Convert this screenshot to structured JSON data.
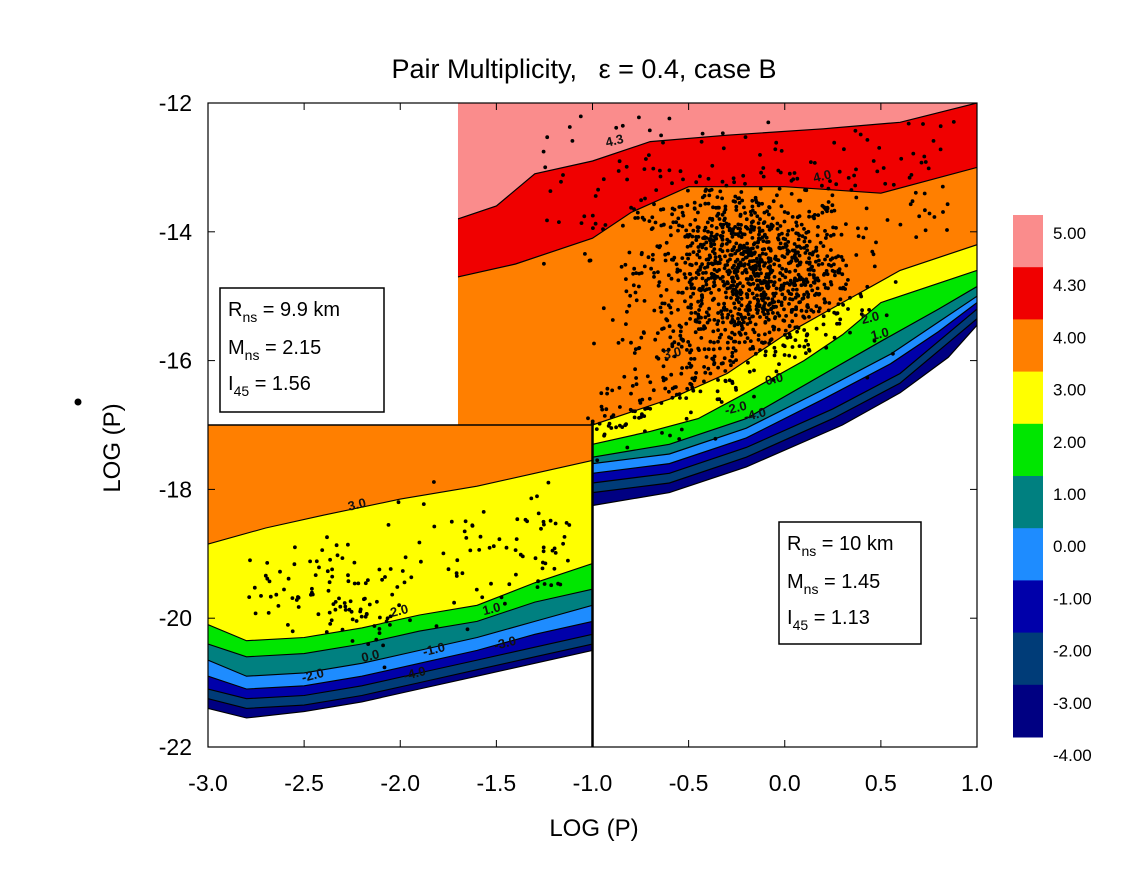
{
  "chart_data": {
    "type": "contour-scatter",
    "title_prefix": "Pair Multiplicity,",
    "title_epsilon": "ε = 0.4, case B",
    "xlabel": "LOG (P)",
    "ylabel": "LOG (P)",
    "ylabel_has_dot": true,
    "xlim": [
      -3.0,
      1.0
    ],
    "ylim": [
      -22,
      -12
    ],
    "x_ticks": [
      "-3.0",
      "-2.5",
      "-2.0",
      "-1.5",
      "-1.0",
      "-0.5",
      "0.0",
      "0.5",
      "1.0"
    ],
    "y_ticks": [
      "-12",
      "-14",
      "-16",
      "-18",
      "-20",
      "-22"
    ],
    "colorbar": {
      "labels": [
        "5.00",
        "4.30",
        "4.00",
        "3.00",
        "2.00",
        "1.00",
        "0.00",
        "-1.00",
        "-2.00",
        "-3.00",
        "-4.00"
      ],
      "colors": [
        "#fa8c8c",
        "#f00000",
        "#ff7f00",
        "#ffff00",
        "#00e600",
        "#008080",
        "#1e8cff",
        "#0000aa",
        "#003c78",
        "#000082"
      ]
    },
    "upper_model": {
      "x_range": [
        -1.7,
        1.0
      ],
      "contour_labels": [
        {
          "text": "4.3",
          "x": -0.88,
          "y": -12.65
        },
        {
          "text": "4.0",
          "x": 0.2,
          "y": -13.2
        },
        {
          "text": "3.0",
          "x": -0.58,
          "y": -15.95
        },
        {
          "text": "2.0",
          "x": 0.45,
          "y": -15.4
        },
        {
          "text": "1.0",
          "x": 0.5,
          "y": -15.65
        },
        {
          "text": "0.0",
          "x": -0.05,
          "y": -16.35
        },
        {
          "text": "-2.0",
          "x": -0.25,
          "y": -16.8
        },
        {
          "text": "-4.0",
          "x": -0.15,
          "y": -16.9
        }
      ]
    },
    "lower_model": {
      "x_range": [
        -3.0,
        -1.0
      ],
      "contour_labels": [
        {
          "text": "3.0",
          "x": -2.22,
          "y": -18.3
        },
        {
          "text": "2.0",
          "x": -2.0,
          "y": -19.95
        },
        {
          "text": "1.0",
          "x": -1.52,
          "y": -19.92
        },
        {
          "text": "0.0",
          "x": -2.15,
          "y": -20.65
        },
        {
          "text": "-1.0",
          "x": -1.82,
          "y": -20.55
        },
        {
          "text": "-3.0",
          "x": -1.45,
          "y": -20.45
        },
        {
          "text": "-2.0",
          "x": -2.45,
          "y": -20.95
        },
        {
          "text": "-4.0",
          "x": -1.92,
          "y": -20.92
        }
      ]
    },
    "pulsar_points_note": "",
    "info_boxes": [
      {
        "r_label": "R",
        "r_sub": "ns",
        "r_value": " = 9.9 km",
        "m_label": "M",
        "m_sub": "ns",
        "m_value": " = 2.15",
        "i_label": "I",
        "i_sub": "45",
        "i_value": " = 1.56"
      },
      {
        "r_label": "R",
        "r_sub": "ns",
        "r_value": " = 10 km",
        "m_label": "M",
        "m_sub": "ns",
        "m_value": " = 1.45",
        "i_label": "I",
        "i_sub": "45",
        "i_value": " = 1.13"
      }
    ]
  }
}
